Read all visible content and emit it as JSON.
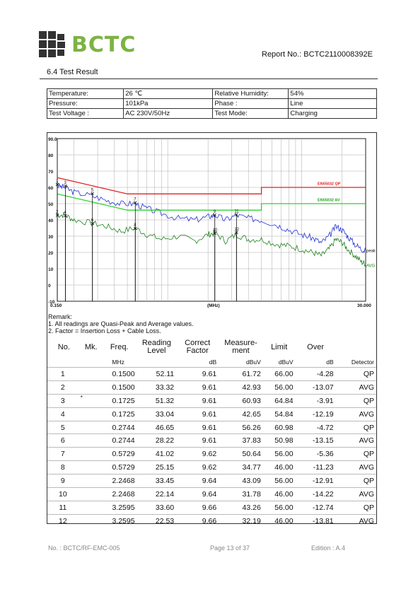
{
  "header": {
    "logo_text": "BCTC",
    "report_no": "Report No.: BCTC2110008392E",
    "section": "6.4    Test Result"
  },
  "info": [
    [
      "Temperature:",
      "26 ℃",
      "Relative Humidity:",
      "54%"
    ],
    [
      "Pressure:",
      "101kPa",
      "Phase :",
      "Line"
    ],
    [
      "Test Voltage :",
      "AC 230V/50Hz",
      "Test Mode:",
      "Charging"
    ]
  ],
  "chart_data": {
    "type": "line",
    "xscale": "log",
    "xlim": [
      0.15,
      30.0
    ],
    "ylim": [
      -10,
      90
    ],
    "y_ticks": [
      "90.0",
      "80",
      "70",
      "60",
      "50",
      "40",
      "30",
      "20",
      "10",
      "0",
      "-10"
    ],
    "x_tick_labels": [
      "0.150",
      "(MHz)",
      "30.000"
    ],
    "limit_labels": [
      "EN55032   QP",
      "EN55032   AV"
    ],
    "trace_labels": [
      "peak",
      "AVG"
    ],
    "limits": {
      "qp": {
        "x": [
          0.15,
          0.5,
          0.5,
          5.0,
          5.0,
          30.0
        ],
        "y": [
          66,
          56,
          56,
          56,
          60,
          60
        ]
      },
      "av": {
        "x": [
          0.15,
          0.5,
          0.5,
          5.0,
          5.0,
          30.0
        ],
        "y": [
          56,
          46,
          46,
          46,
          50,
          50
        ]
      }
    },
    "peak_trace": {
      "x": [
        0.15,
        0.17,
        0.2,
        0.27,
        0.35,
        0.45,
        0.57,
        0.7,
        0.9,
        1.2,
        1.6,
        2.0,
        2.25,
        2.7,
        3.26,
        4.0,
        5.0,
        6.5,
        8.0,
        10.0,
        12.0,
        14.0,
        16.0,
        18.0,
        20.0,
        22.0,
        25.0,
        28.0,
        30.0
      ],
      "y": [
        61,
        60,
        57,
        55,
        52,
        50,
        50,
        47,
        44,
        41,
        40,
        42,
        43,
        40,
        43,
        41,
        40,
        37,
        34,
        31,
        29,
        26,
        30,
        36,
        34,
        30,
        25,
        22,
        21
      ]
    },
    "avg_trace": {
      "x": [
        0.15,
        0.17,
        0.2,
        0.27,
        0.35,
        0.45,
        0.57,
        0.7,
        0.9,
        1.2,
        1.6,
        2.0,
        2.25,
        2.7,
        3.26,
        4.0,
        5.0,
        6.5,
        8.0,
        10.0,
        12.0,
        14.0,
        16.0,
        18.0,
        20.0,
        22.0,
        25.0,
        28.0,
        30.0
      ],
      "y": [
        43,
        43,
        40,
        38,
        36,
        33,
        35,
        31,
        28,
        30,
        27,
        31,
        32,
        27,
        31,
        28,
        28,
        25,
        24,
        22,
        20,
        18,
        22,
        28,
        26,
        22,
        18,
        14,
        13
      ]
    },
    "markers": [
      {
        "label": "1",
        "x": 0.15,
        "y": 61.72
      },
      {
        "label": "2",
        "x": 0.15,
        "y": 42.93
      },
      {
        "label": "3",
        "x": 0.1725,
        "y": 60.93
      },
      {
        "label": "4",
        "x": 0.1725,
        "y": 42.65
      },
      {
        "label": "5",
        "x": 0.2744,
        "y": 56.26
      },
      {
        "label": "6",
        "x": 0.2744,
        "y": 37.83
      },
      {
        "label": "7",
        "x": 0.5729,
        "y": 50.64
      },
      {
        "label": "8",
        "x": 0.5729,
        "y": 34.77
      },
      {
        "label": "9",
        "x": 2.2468,
        "y": 43.09
      },
      {
        "label": "10",
        "x": 2.2468,
        "y": 31.78
      },
      {
        "label": "11",
        "x": 3.2595,
        "y": 43.26
      },
      {
        "label": "12",
        "x": 3.2595,
        "y": 32.19
      }
    ],
    "colors": {
      "qp_limit": "#e02020",
      "av_limit": "#30d030",
      "peak": "#2030d0",
      "avg": "#208020"
    }
  },
  "remark": {
    "title": "Remark:",
    "lines": [
      "1. All readings are Quasi-Peak and Average values.",
      "2. Factor = Insertion Loss + Cable Loss."
    ]
  },
  "results": {
    "headers": [
      "No.",
      "Mk.",
      "Freq.",
      "Reading Level",
      "Correct Factor",
      "Measure-ment",
      "Limit",
      "Over",
      ""
    ],
    "units": [
      "",
      "",
      "MHz",
      "",
      "dB",
      "dBuV",
      "dBuV",
      "dB",
      "Detector"
    ],
    "rows": [
      [
        "1",
        "",
        "0.1500",
        "52.11",
        "9.61",
        "61.72",
        "66.00",
        "-4.28",
        "QP"
      ],
      [
        "2",
        "",
        "0.1500",
        "33.32",
        "9.61",
        "42.93",
        "56.00",
        "-13.07",
        "AVG"
      ],
      [
        "3",
        "*",
        "0.1725",
        "51.32",
        "9.61",
        "60.93",
        "64.84",
        "-3.91",
        "QP"
      ],
      [
        "4",
        "",
        "0.1725",
        "33.04",
        "9.61",
        "42.65",
        "54.84",
        "-12.19",
        "AVG"
      ],
      [
        "5",
        "",
        "0.2744",
        "46.65",
        "9.61",
        "56.26",
        "60.98",
        "-4.72",
        "QP"
      ],
      [
        "6",
        "",
        "0.2744",
        "28.22",
        "9.61",
        "37.83",
        "50.98",
        "-13.15",
        "AVG"
      ],
      [
        "7",
        "",
        "0.5729",
        "41.02",
        "9.62",
        "50.64",
        "56.00",
        "-5.36",
        "QP"
      ],
      [
        "8",
        "",
        "0.5729",
        "25.15",
        "9.62",
        "34.77",
        "46.00",
        "-11.23",
        "AVG"
      ],
      [
        "9",
        "",
        "2.2468",
        "33.45",
        "9.64",
        "43.09",
        "56.00",
        "-12.91",
        "QP"
      ],
      [
        "10",
        "",
        "2.2468",
        "22.14",
        "9.64",
        "31.78",
        "46.00",
        "-14.22",
        "AVG"
      ],
      [
        "11",
        "",
        "3.2595",
        "33.60",
        "9.66",
        "43.26",
        "56.00",
        "-12.74",
        "QP"
      ],
      [
        "12",
        "",
        "3.2595",
        "22.53",
        "9.66",
        "32.19",
        "46.00",
        "-13.81",
        "AVG"
      ]
    ]
  },
  "footer": {
    "left": "No. : BCTC/RF-EMC-005",
    "center": "Page 13 of 37",
    "right": "Edition : A.4"
  }
}
